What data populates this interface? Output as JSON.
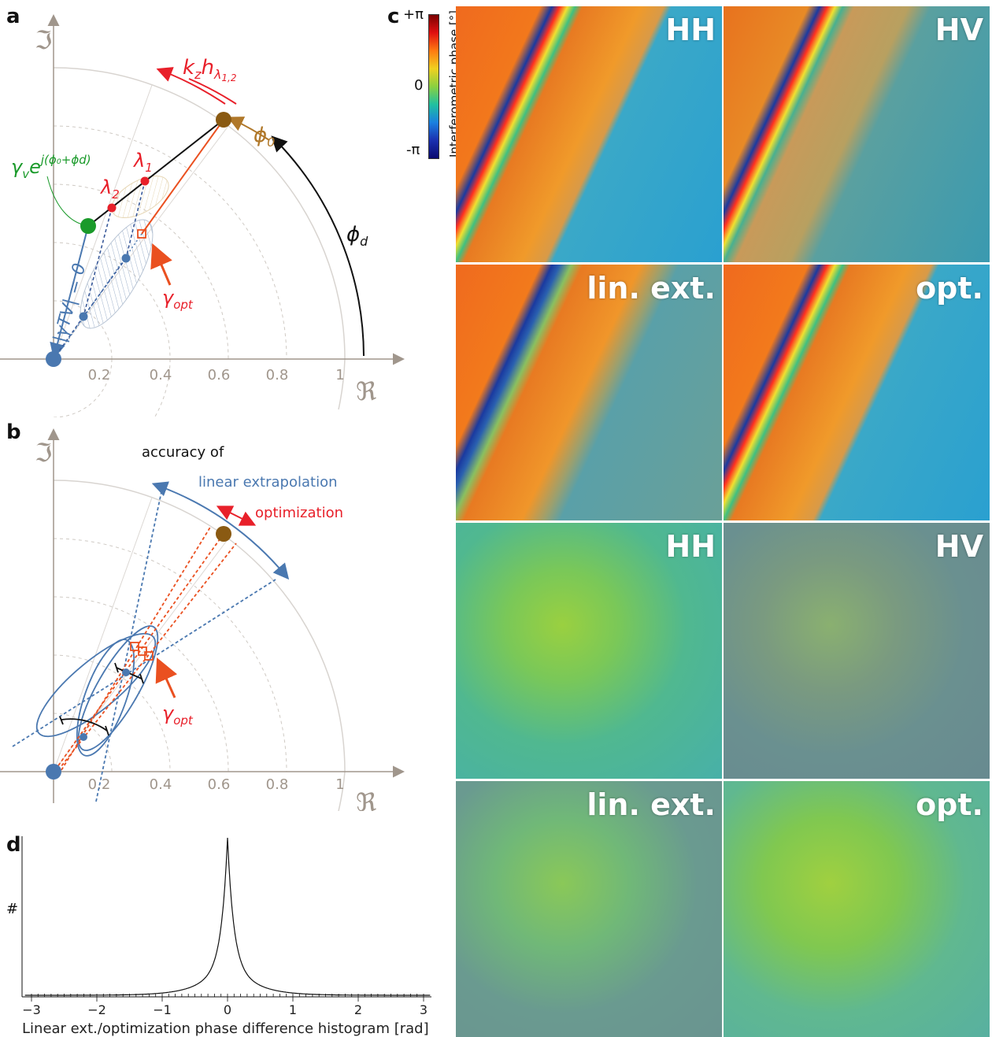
{
  "colors": {
    "blue": "#4a78b0",
    "red": "#e8202a",
    "orange": "#ea5020",
    "brown": "#8a5a12",
    "green": "#1a9a2a",
    "gray": "#a0968c",
    "lightgray": "#d8d4d0"
  },
  "panel_a": {
    "letter": "a",
    "imag_symbol": "ℑ",
    "real_symbol": "ℜ",
    "ticks": [
      "0.2",
      "0.4",
      "0.6",
      "0.8",
      "1"
    ],
    "kz_label": "k",
    "kz_sub": "z",
    "h_label": "h",
    "h_sub": "λ",
    "h_sub_idx": "1,2",
    "phi0_label": "ϕ",
    "phi0_sub": "0",
    "phid_label": "ϕ",
    "phid_sub": "d",
    "gamma_v_label": "γ",
    "gamma_v_sub": "v",
    "gamma_v_exp": "e",
    "gamma_v_exp_sup": "j(ϕ₀+ϕd)",
    "lambda1": "λ",
    "lambda1_sub": "1",
    "lambda2": "λ",
    "lambda2_sub": "2",
    "gamma_opt": "γ",
    "gamma_opt_sub": "opt",
    "gamma_tv_label": "|γTV| = 0"
  },
  "panel_b": {
    "letter": "b",
    "imag_symbol": "ℑ",
    "real_symbol": "ℜ",
    "ticks": [
      "0.2",
      "0.4",
      "0.6",
      "0.8",
      "1"
    ],
    "accuracy_label": "accuracy of",
    "linear_label": "linear extrapolation",
    "optimization_label": "optimization",
    "gamma_opt": "γ",
    "gamma_opt_sub": "opt"
  },
  "panel_c": {
    "letter": "c",
    "colorbar_top": "+π",
    "colorbar_mid": "0",
    "colorbar_bottom": "-π",
    "colorbar_label": "Interferometric phase [°]",
    "tiles": [
      "HH",
      "HV",
      "lin. ext.",
      "opt.",
      "HH",
      "HV",
      "lin. ext.",
      "opt."
    ]
  },
  "panel_d": {
    "letter": "d",
    "ylabel": "#",
    "xlabel": "Linear ext./optimization phase difference histogram [rad]",
    "xticks": [
      "−3",
      "−2",
      "−1",
      "0",
      "1",
      "2",
      "3"
    ],
    "chart_data": {
      "type": "line",
      "x_range": [
        -3.1,
        3.1
      ],
      "peak_x": 0,
      "shape": "sharp peak centered at 0",
      "xlabel": "Linear ext./optimization phase difference histogram [rad]",
      "ylabel": "#"
    }
  }
}
